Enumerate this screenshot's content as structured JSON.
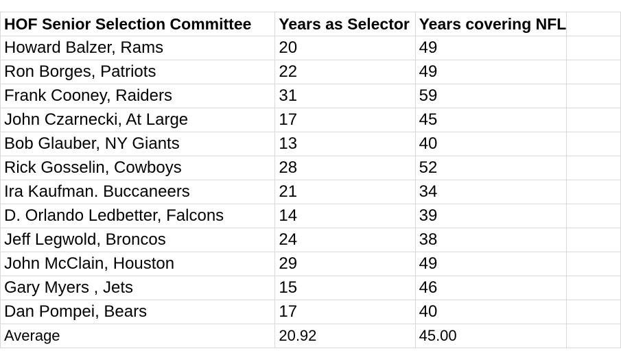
{
  "table": {
    "headers": [
      "HOF Senior Selection Committee",
      "Years as Selector",
      "Years covering NFL"
    ],
    "rows": [
      [
        "Howard Balzer, Rams",
        "20",
        "49"
      ],
      [
        "Ron Borges, Patriots",
        "22",
        "49"
      ],
      [
        "Frank Cooney, Raiders",
        "31",
        "59"
      ],
      [
        "John Czarnecki, At Large",
        "17",
        "45"
      ],
      [
        "Bob Glauber, NY Giants",
        "13",
        "40"
      ],
      [
        "Rick Gosselin, Cowboys",
        "28",
        "52"
      ],
      [
        "Ira Kaufman. Buccaneers",
        "21",
        "34"
      ],
      [
        "D. Orlando Ledbetter, Falcons",
        "14",
        "39"
      ],
      [
        "Jeff Legwold, Broncos",
        "24",
        "38"
      ],
      [
        "John McClain, Houston",
        "29",
        "49"
      ],
      [
        "Gary Myers , Jets",
        "15",
        "46"
      ],
      [
        "Dan Pompei, Bears",
        "17",
        "40"
      ]
    ],
    "footer": [
      "Average",
      "20.92",
      "45.00"
    ]
  }
}
